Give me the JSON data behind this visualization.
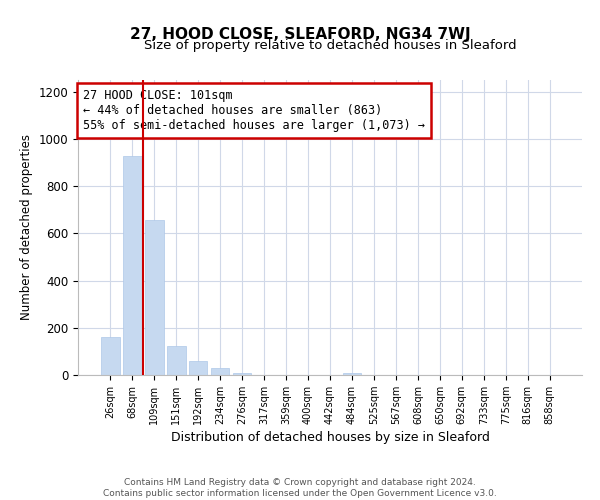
{
  "title": "27, HOOD CLOSE, SLEAFORD, NG34 7WJ",
  "subtitle": "Size of property relative to detached houses in Sleaford",
  "xlabel": "Distribution of detached houses by size in Sleaford",
  "ylabel": "Number of detached properties",
  "bar_labels": [
    "26sqm",
    "68sqm",
    "109sqm",
    "151sqm",
    "192sqm",
    "234sqm",
    "276sqm",
    "317sqm",
    "359sqm",
    "400sqm",
    "442sqm",
    "484sqm",
    "525sqm",
    "567sqm",
    "608sqm",
    "650sqm",
    "692sqm",
    "733sqm",
    "775sqm",
    "816sqm",
    "858sqm"
  ],
  "bar_values": [
    160,
    930,
    655,
    125,
    60,
    28,
    10,
    0,
    0,
    0,
    0,
    10,
    0,
    0,
    0,
    0,
    0,
    0,
    0,
    0,
    0
  ],
  "bar_color": "#c6d9f0",
  "bar_edge_color": "#aec8e8",
  "vline_color": "#cc0000",
  "annotation_title": "27 HOOD CLOSE: 101sqm",
  "annotation_line1": "← 44% of detached houses are smaller (863)",
  "annotation_line2": "55% of semi-detached houses are larger (1,073) →",
  "box_color": "#ffffff",
  "box_edge_color": "#cc0000",
  "ylim": [
    0,
    1250
  ],
  "yticks": [
    0,
    200,
    400,
    600,
    800,
    1000,
    1200
  ],
  "footer1": "Contains HM Land Registry data © Crown copyright and database right 2024.",
  "footer2": "Contains public sector information licensed under the Open Government Licence v3.0.",
  "bg_color": "#ffffff",
  "grid_color": "#d0d8e8"
}
